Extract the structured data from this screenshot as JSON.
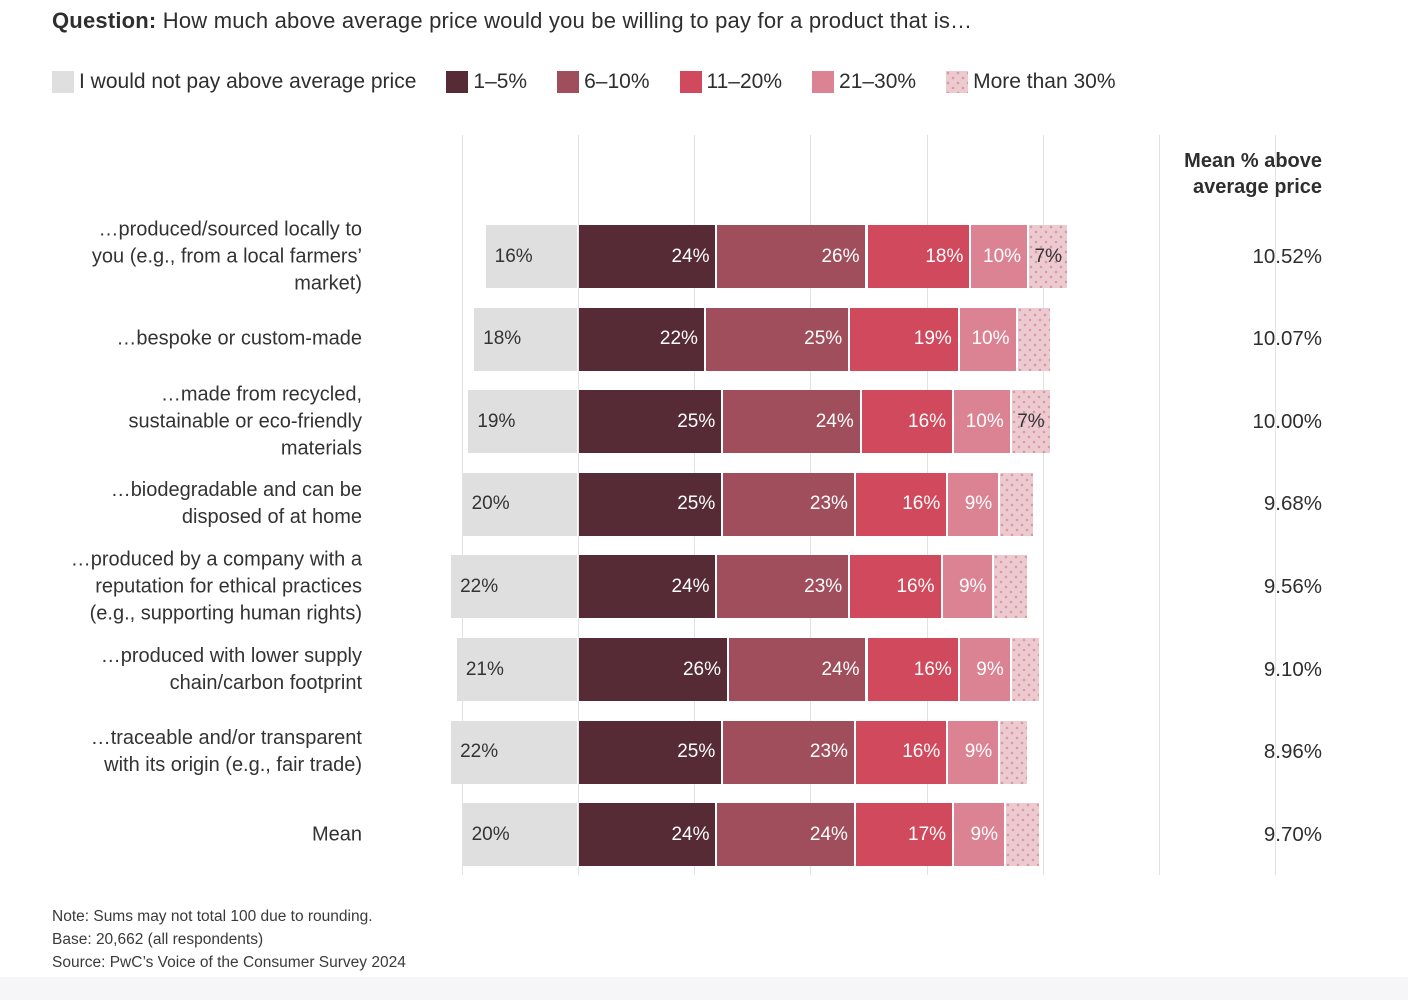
{
  "title": {
    "prefix": "Question:",
    "rest": "How much above average price would you be willing to pay for a product that is…"
  },
  "legend": [
    {
      "label": "I would not pay above average price",
      "color": "#DFDFDF"
    },
    {
      "label": "1–5%",
      "color": "#562B35"
    },
    {
      "label": "6–10%",
      "color": "#A04E5C"
    },
    {
      "label": "11–20%",
      "color": "#D1495C"
    },
    {
      "label": "21–30%",
      "color": "#DB8393"
    },
    {
      "label": "More than 30%",
      "color": "#EDC9D0",
      "pattern": "dots"
    }
  ],
  "mean_column_header": "Mean % above\naverage price",
  "chart_data": {
    "type": "bar",
    "subtype": "horizontal-stacked",
    "stack_order": [
      "I would not pay above average price",
      "1–5%",
      "6–10%",
      "11–20%",
      "21–30%",
      "More than 30%"
    ],
    "unit": "percent of respondents",
    "axis": {
      "gridline_spacing_percent": 20,
      "note": "gray 'would not pay' segment extends left of the zero baseline; paying segments extend right"
    },
    "rows": [
      {
        "label": "…produced/sourced locally to\nyou (e.g., from a local farmers’\nmarket)",
        "values": [
          16,
          24,
          26,
          18,
          10,
          7
        ],
        "value_labels": [
          "16%",
          "24%",
          "26%",
          "18%",
          "10%",
          "7%"
        ],
        "mean": "10.52%"
      },
      {
        "label": "…bespoke or custom-made",
        "values": [
          18,
          22,
          25,
          19,
          10,
          6
        ],
        "value_labels": [
          "18%",
          "22%",
          "25%",
          "19%",
          "10%",
          ""
        ],
        "mean": "10.07%"
      },
      {
        "label": "…made from recycled,\nsustainable or eco-friendly\nmaterials",
        "values": [
          19,
          25,
          24,
          16,
          10,
          7
        ],
        "value_labels": [
          "19%",
          "25%",
          "24%",
          "16%",
          "10%",
          "7%"
        ],
        "mean": "10.00%"
      },
      {
        "label": "…biodegradable and can be\ndisposed of at home",
        "values": [
          20,
          25,
          23,
          16,
          9,
          6
        ],
        "value_labels": [
          "20%",
          "25%",
          "23%",
          "16%",
          "9%",
          ""
        ],
        "mean": "9.68%"
      },
      {
        "label": "…produced by a company with a\nreputation for ethical practices\n(e.g., supporting human rights)",
        "values": [
          22,
          24,
          23,
          16,
          9,
          6
        ],
        "value_labels": [
          "22%",
          "24%",
          "23%",
          "16%",
          "9%",
          ""
        ],
        "mean": "9.56%"
      },
      {
        "label": "…produced with lower supply\nchain/carbon footprint",
        "values": [
          21,
          26,
          24,
          16,
          9,
          5
        ],
        "value_labels": [
          "21%",
          "26%",
          "24%",
          "16%",
          "9%",
          ""
        ],
        "mean": "9.10%"
      },
      {
        "label": "…traceable and/or transparent\nwith its origin (e.g., fair trade)",
        "values": [
          22,
          25,
          23,
          16,
          9,
          5
        ],
        "value_labels": [
          "22%",
          "25%",
          "23%",
          "16%",
          "9%",
          ""
        ],
        "mean": "8.96%"
      },
      {
        "label": "Mean",
        "values": [
          20,
          24,
          24,
          17,
          9,
          6
        ],
        "value_labels": [
          "20%",
          "24%",
          "24%",
          "17%",
          "9%",
          ""
        ],
        "mean": "9.70%"
      }
    ]
  },
  "footer": {
    "lines": [
      "Note: Sums may not total 100 due to rounding.",
      "Base: 20,662 (all respondents)",
      "Source: PwC’s Voice of the Consumer Survey 2024"
    ]
  }
}
